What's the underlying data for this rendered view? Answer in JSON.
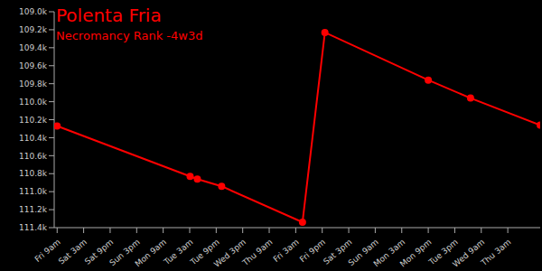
{
  "chart_data": {
    "type": "line",
    "title": "Polenta Fria",
    "subtitle": "Necromancy Rank -4w3d",
    "x": [
      0,
      90.3,
      95.2,
      111.7,
      166.6,
      181.8,
      252,
      280.7,
      328
    ],
    "series": [
      {
        "name": "Necromancy Rank",
        "color": "#ff0000",
        "values": [
          110270,
          110830,
          110860,
          110940,
          111340,
          109230,
          109760,
          109960,
          110260
        ],
        "marker": "circle",
        "line_style": "solid"
      }
    ],
    "xlim": [
      -2,
      328
    ],
    "xticks": [
      {
        "value": 0,
        "label": "Fri 9am"
      },
      {
        "value": 18,
        "label": "Sat 3am"
      },
      {
        "value": 36,
        "label": "Sat 9pm"
      },
      {
        "value": 54,
        "label": "Sun 3pm"
      },
      {
        "value": 72,
        "label": "Mon 9am"
      },
      {
        "value": 90,
        "label": "Tue 3am"
      },
      {
        "value": 108,
        "label": "Tue 9pm"
      },
      {
        "value": 126,
        "label": "Wed 3pm"
      },
      {
        "value": 144,
        "label": "Thu 9am"
      },
      {
        "value": 162,
        "label": "Fri 3am"
      },
      {
        "value": 180,
        "label": "Fri 9pm"
      },
      {
        "value": 198,
        "label": "Sat 3pm"
      },
      {
        "value": 216,
        "label": "Sun 9am"
      },
      {
        "value": 234,
        "label": "Mon 3am"
      },
      {
        "value": 252,
        "label": "Mon 9pm"
      },
      {
        "value": 270,
        "label": "Tue 3pm"
      },
      {
        "value": 288,
        "label": "Wed 9am"
      },
      {
        "value": 306,
        "label": "Thu 3am"
      }
    ],
    "ylim": [
      109000,
      111400
    ],
    "yticks": [
      {
        "value": 109000,
        "label": "109.0k"
      },
      {
        "value": 109200,
        "label": "109.2k"
      },
      {
        "value": 109400,
        "label": "109.4k"
      },
      {
        "value": 109600,
        "label": "109.6k"
      },
      {
        "value": 109800,
        "label": "109.8k"
      },
      {
        "value": 110000,
        "label": "110.0k"
      },
      {
        "value": 110200,
        "label": "110.2k"
      },
      {
        "value": 110400,
        "label": "110.4k"
      },
      {
        "value": 110600,
        "label": "110.6k"
      },
      {
        "value": 110800,
        "label": "110.8k"
      },
      {
        "value": 111000,
        "label": "111.0k"
      },
      {
        "value": 111200,
        "label": "111.2k"
      },
      {
        "value": 111400,
        "label": "111.4k"
      }
    ],
    "grid": false
  }
}
